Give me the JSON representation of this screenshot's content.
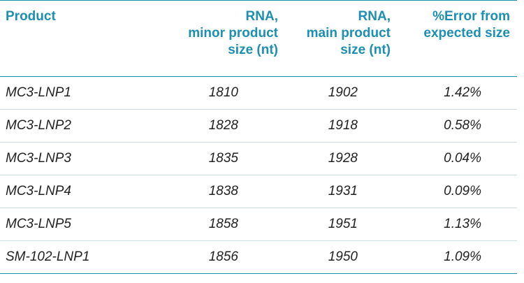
{
  "columns": {
    "product": "Product",
    "minor": "RNA,\nminor product\nsize (nt)",
    "main": "RNA,\nmain product\nsize (nt)",
    "error": "%Error from\nexpected size"
  },
  "rows": [
    {
      "product": "MC3-LNP1",
      "minor": "1810",
      "main": "1902",
      "error": "1.42%"
    },
    {
      "product": "MC3-LNP2",
      "minor": "1828",
      "main": "1918",
      "error": "0.58%"
    },
    {
      "product": "MC3-LNP3",
      "minor": "1835",
      "main": "1928",
      "error": "0.04%"
    },
    {
      "product": "MC3-LNP4",
      "minor": "1838",
      "main": "1931",
      "error": "0.09%"
    },
    {
      "product": "MC3-LNP5",
      "minor": "1858",
      "main": "1951",
      "error": "1.13%"
    },
    {
      "product": "SM-102-LNP1",
      "minor": "1856",
      "main": "1950",
      "error": "1.09%"
    }
  ],
  "colors": {
    "header_text": "#1d8fb1",
    "rule": "#1a8fa6",
    "row_divider": "#c9dde2",
    "body_text": "#222222"
  }
}
